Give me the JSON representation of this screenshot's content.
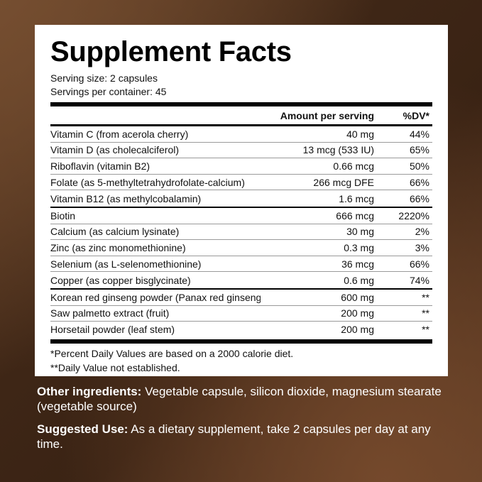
{
  "panel": {
    "title": "Supplement Facts",
    "serving_size": "Serving size: 2 capsules",
    "servings_per_container": "Servings per container: 45",
    "header": {
      "amount": "Amount per serving",
      "dv": "%DV*"
    },
    "section1": [
      {
        "name": "Vitamin C (from acerola cherry)",
        "amount": "40 mg",
        "dv": "44%"
      },
      {
        "name": "Vitamin D (as cholecalciferol)",
        "amount": "13 mcg (533 IU)",
        "dv": "65%"
      },
      {
        "name": "Riboflavin (vitamin B2)",
        "amount": "0.66 mcg",
        "dv": "50%"
      },
      {
        "name": "Folate (as 5-methyltetrahydrofolate-calcium)",
        "amount": "266 mcg DFE",
        "dv": "66%"
      },
      {
        "name": "Vitamin B12 (as methylcobalamin)",
        "amount": "1.6 mcg",
        "dv": "66%"
      }
    ],
    "section2": [
      {
        "name": "Biotin",
        "amount": "666 mcg",
        "dv": "2220%"
      },
      {
        "name": "Calcium (as calcium lysinate)",
        "amount": "30 mg",
        "dv": "2%"
      },
      {
        "name": "Zinc (as zinc monomethionine)",
        "amount": "0.3 mg",
        "dv": "3%"
      },
      {
        "name": "Selenium (as L-selenomethionine)",
        "amount": "36 mcg",
        "dv": "66%"
      },
      {
        "name": "Copper (as copper bisglycinate)",
        "amount": "0.6 mg",
        "dv": "74%"
      }
    ],
    "section3": [
      {
        "name": "Korean red ginseng powder (Panax red ginseng)(root)",
        "amount": "600 mg",
        "dv": "**"
      },
      {
        "name": "Saw palmetto extract (fruit)",
        "amount": "200 mg",
        "dv": "**"
      },
      {
        "name": "Horsetail powder (leaf stem)",
        "amount": "200 mg",
        "dv": "**"
      }
    ],
    "footnote1": "*Percent Daily Values are based on a 2000 calorie diet.",
    "footnote2": "**Daily Value not established."
  },
  "other_ingredients": {
    "label": "Other ingredients:",
    "text": " Vegetable capsule, silicon dioxide, magnesium stearate (vegetable source)"
  },
  "suggested_use": {
    "label": "Suggested Use:",
    "text": " As a dietary supplement, take 2 capsules per day at any time."
  }
}
